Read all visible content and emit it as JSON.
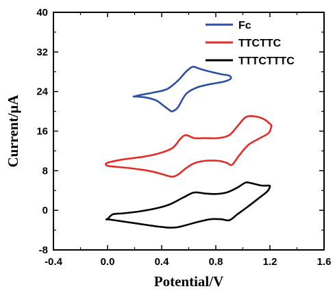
{
  "chart_data": {
    "type": "line",
    "xlabel": "Potential/V",
    "ylabel": "Current/μA",
    "xlim": [
      -0.4,
      1.6
    ],
    "ylim": [
      -8,
      40
    ],
    "x_ticks": [
      -0.4,
      0.0,
      0.4,
      0.8,
      1.2,
      1.6
    ],
    "x_tick_labels": [
      "-0.4",
      "0.0",
      "0.4",
      "0.8",
      "1.2",
      "1.6"
    ],
    "y_ticks": [
      -8,
      0,
      8,
      16,
      24,
      32,
      40
    ],
    "y_tick_labels": [
      "-8",
      "0",
      "8",
      "16",
      "24",
      "32",
      "40"
    ],
    "grid": false,
    "legend_position": "top-right",
    "series": [
      {
        "name": "Fc",
        "color": "#2b4fa3",
        "x": [
          0.2,
          0.28,
          0.36,
          0.42,
          0.46,
          0.48,
          0.52,
          0.58,
          0.66,
          0.76,
          0.86,
          0.91,
          0.9,
          0.84,
          0.76,
          0.68,
          0.63,
          0.58,
          0.52,
          0.44,
          0.34,
          0.24,
          0.2
        ],
        "y": [
          23.0,
          22.8,
          22.2,
          21.0,
          20.2,
          20.0,
          20.8,
          23.5,
          24.8,
          25.5,
          26.0,
          26.6,
          27.2,
          27.5,
          28.0,
          28.6,
          29.0,
          28.0,
          26.2,
          24.5,
          23.8,
          23.3,
          23.0
        ]
      },
      {
        "name": "TTCTTC",
        "color": "#e52b24",
        "x": [
          0.0,
          0.1,
          0.2,
          0.3,
          0.38,
          0.44,
          0.48,
          0.52,
          0.58,
          0.64,
          0.72,
          0.82,
          0.88,
          0.92,
          0.97,
          1.04,
          1.12,
          1.19,
          1.21,
          1.2,
          1.15,
          1.08,
          1.02,
          0.96,
          0.9,
          0.82,
          0.72,
          0.64,
          0.58,
          0.54,
          0.48,
          0.38,
          0.26,
          0.12,
          0.0
        ],
        "y": [
          9.0,
          8.7,
          8.4,
          8.0,
          7.5,
          7.0,
          6.8,
          7.2,
          8.5,
          9.5,
          10.0,
          10.0,
          9.6,
          9.2,
          11.0,
          13.2,
          14.5,
          15.6,
          17.0,
          17.5,
          18.5,
          19.0,
          18.8,
          17.0,
          15.2,
          14.6,
          14.6,
          14.6,
          15.2,
          14.5,
          12.6,
          11.5,
          10.8,
          10.3,
          9.6
        ]
      },
      {
        "name": "TTTCTTTC",
        "color": "#000000",
        "x": [
          0.0,
          0.1,
          0.2,
          0.3,
          0.38,
          0.46,
          0.52,
          0.58,
          0.66,
          0.76,
          0.84,
          0.9,
          0.96,
          1.04,
          1.12,
          1.18,
          1.2,
          1.19,
          1.14,
          1.06,
          1.02,
          0.96,
          0.88,
          0.8,
          0.72,
          0.64,
          0.56,
          0.46,
          0.36,
          0.24,
          0.12,
          0.04,
          0.0
        ],
        "y": [
          -1.8,
          -2.2,
          -2.6,
          -3.0,
          -3.3,
          -3.5,
          -3.4,
          -3.0,
          -2.4,
          -1.8,
          -1.8,
          -2.0,
          -0.8,
          0.8,
          2.5,
          3.8,
          4.8,
          5.0,
          5.0,
          5.5,
          5.6,
          4.6,
          3.6,
          3.3,
          3.4,
          3.6,
          2.6,
          1.2,
          0.4,
          -0.2,
          -0.6,
          -0.8,
          -1.8
        ]
      }
    ]
  }
}
